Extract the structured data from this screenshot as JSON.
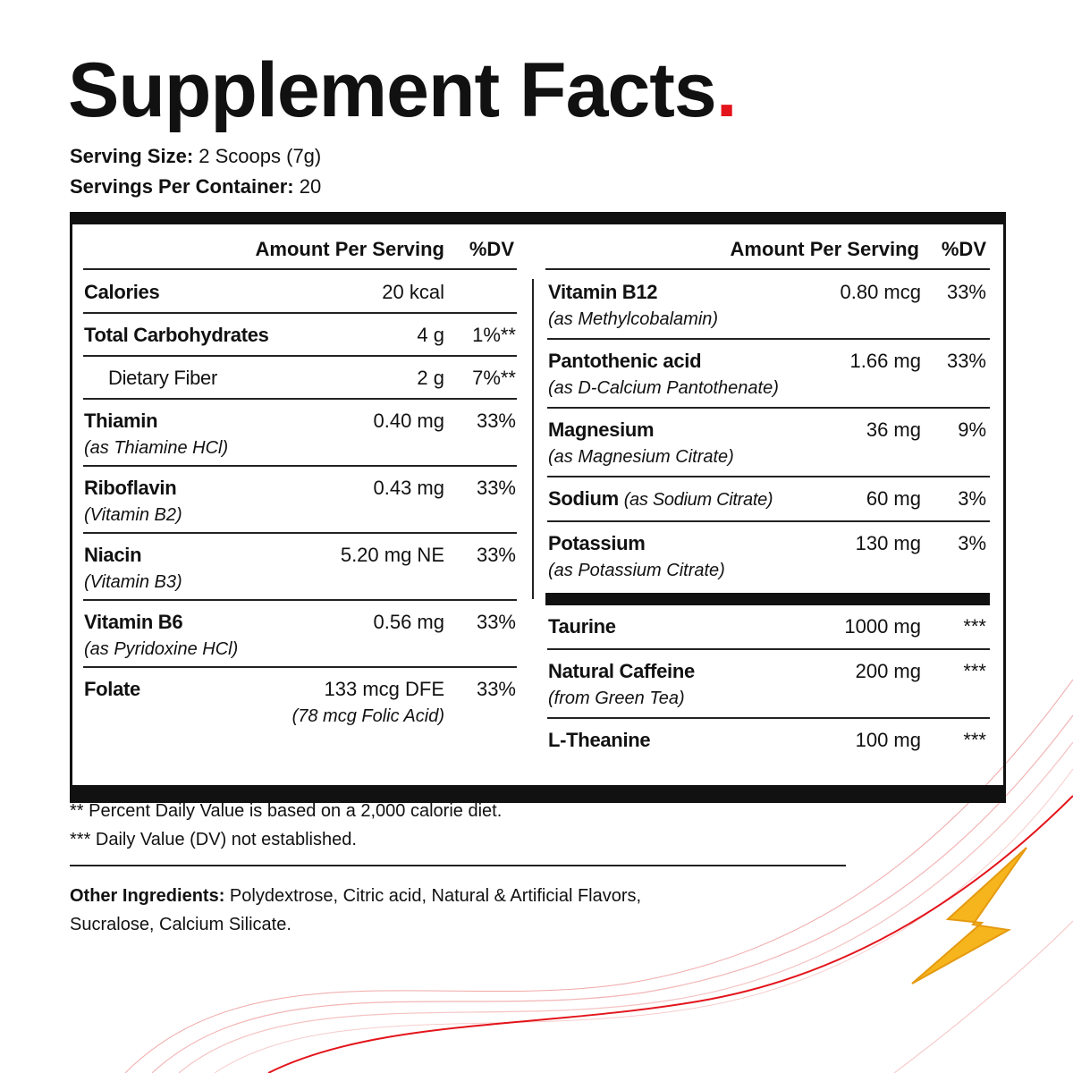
{
  "title": "Supplement Facts",
  "title_mark": ".",
  "serving_size": {
    "label": "Serving Size:",
    "value": "2 Scoops (7g)"
  },
  "servings_per_container": {
    "label": "Servings Per Container:",
    "value": "20"
  },
  "left_table": {
    "headers": [
      "Amount Per Serving",
      "%DV"
    ],
    "rows": [
      {
        "name": "Calories",
        "amount": "20 kcal"
      },
      {
        "name": "Total Carbohydrates",
        "amount": "4 g",
        "dv": "1%**",
        "includes": [
          {
            "name": "Dietary Fiber",
            "amount": "2 g",
            "dv": "7%**"
          }
        ]
      },
      {
        "name": "Thiamin",
        "sub": "(as Thiamine HCl)",
        "amount": "0.40 mg",
        "dv": "33%"
      },
      {
        "name": "Riboflavin",
        "sub": "(Vitamin B2)",
        "amount": "0.43 mg",
        "dv": "33%"
      },
      {
        "name": "Niacin",
        "sub": "(Vitamin B3)",
        "amount": "5.20 mg NE",
        "dv": "33%"
      },
      {
        "name": "Vitamin B6",
        "sub": "(as Pyridoxine HCl)",
        "amount": "0.56 mg",
        "dv": "33%"
      },
      {
        "name": "Folate",
        "amount": "133 mcg DFE",
        "amount_sub": "(78 mcg Folic Acid)",
        "dv": "33%"
      }
    ]
  },
  "right_table": {
    "headers": [
      "Amount Per Serving",
      "%DV"
    ],
    "sections": [
      [
        {
          "name": "Vitamin B12",
          "sub": "(as Methylcobalamin)",
          "amount": "0.80 mcg",
          "dv": "33%"
        },
        {
          "name": "Pantothenic acid",
          "sub": "(as D-Calcium Pantothenate)",
          "amount": "1.66 mg",
          "dv": "33%"
        },
        {
          "name": "Magnesium",
          "sub": "(as Magnesium Citrate)",
          "amount": "36 mg",
          "dv": "9%"
        },
        {
          "name": "Sodium",
          "inline_sub": "(as Sodium Citrate)",
          "amount": "60 mg",
          "dv": "3%"
        },
        {
          "name": "Potassium",
          "sub": "(as Potassium Citrate)",
          "amount": "130 mg",
          "dv": "3%"
        }
      ],
      [
        {
          "name": "Taurine",
          "amount": "1000 mg",
          "dv": "***"
        },
        {
          "name": "Natural Caffeine",
          "sub": "(from Green Tea)",
          "amount": "200 mg",
          "dv": "***"
        },
        {
          "name": "L-Theanine",
          "amount": "100 mg",
          "dv": "***"
        }
      ]
    ]
  },
  "footnotes": [
    "** Percent Daily Value is based on a 2,000 calorie diet.",
    "*** Daily Value (DV) not established."
  ],
  "other_ingredients": {
    "label": "Other Ingredients:",
    "value": "Polydextrose, Citric acid, Natural & Artificial Flavors, Sucralose, Calcium Silicate."
  }
}
